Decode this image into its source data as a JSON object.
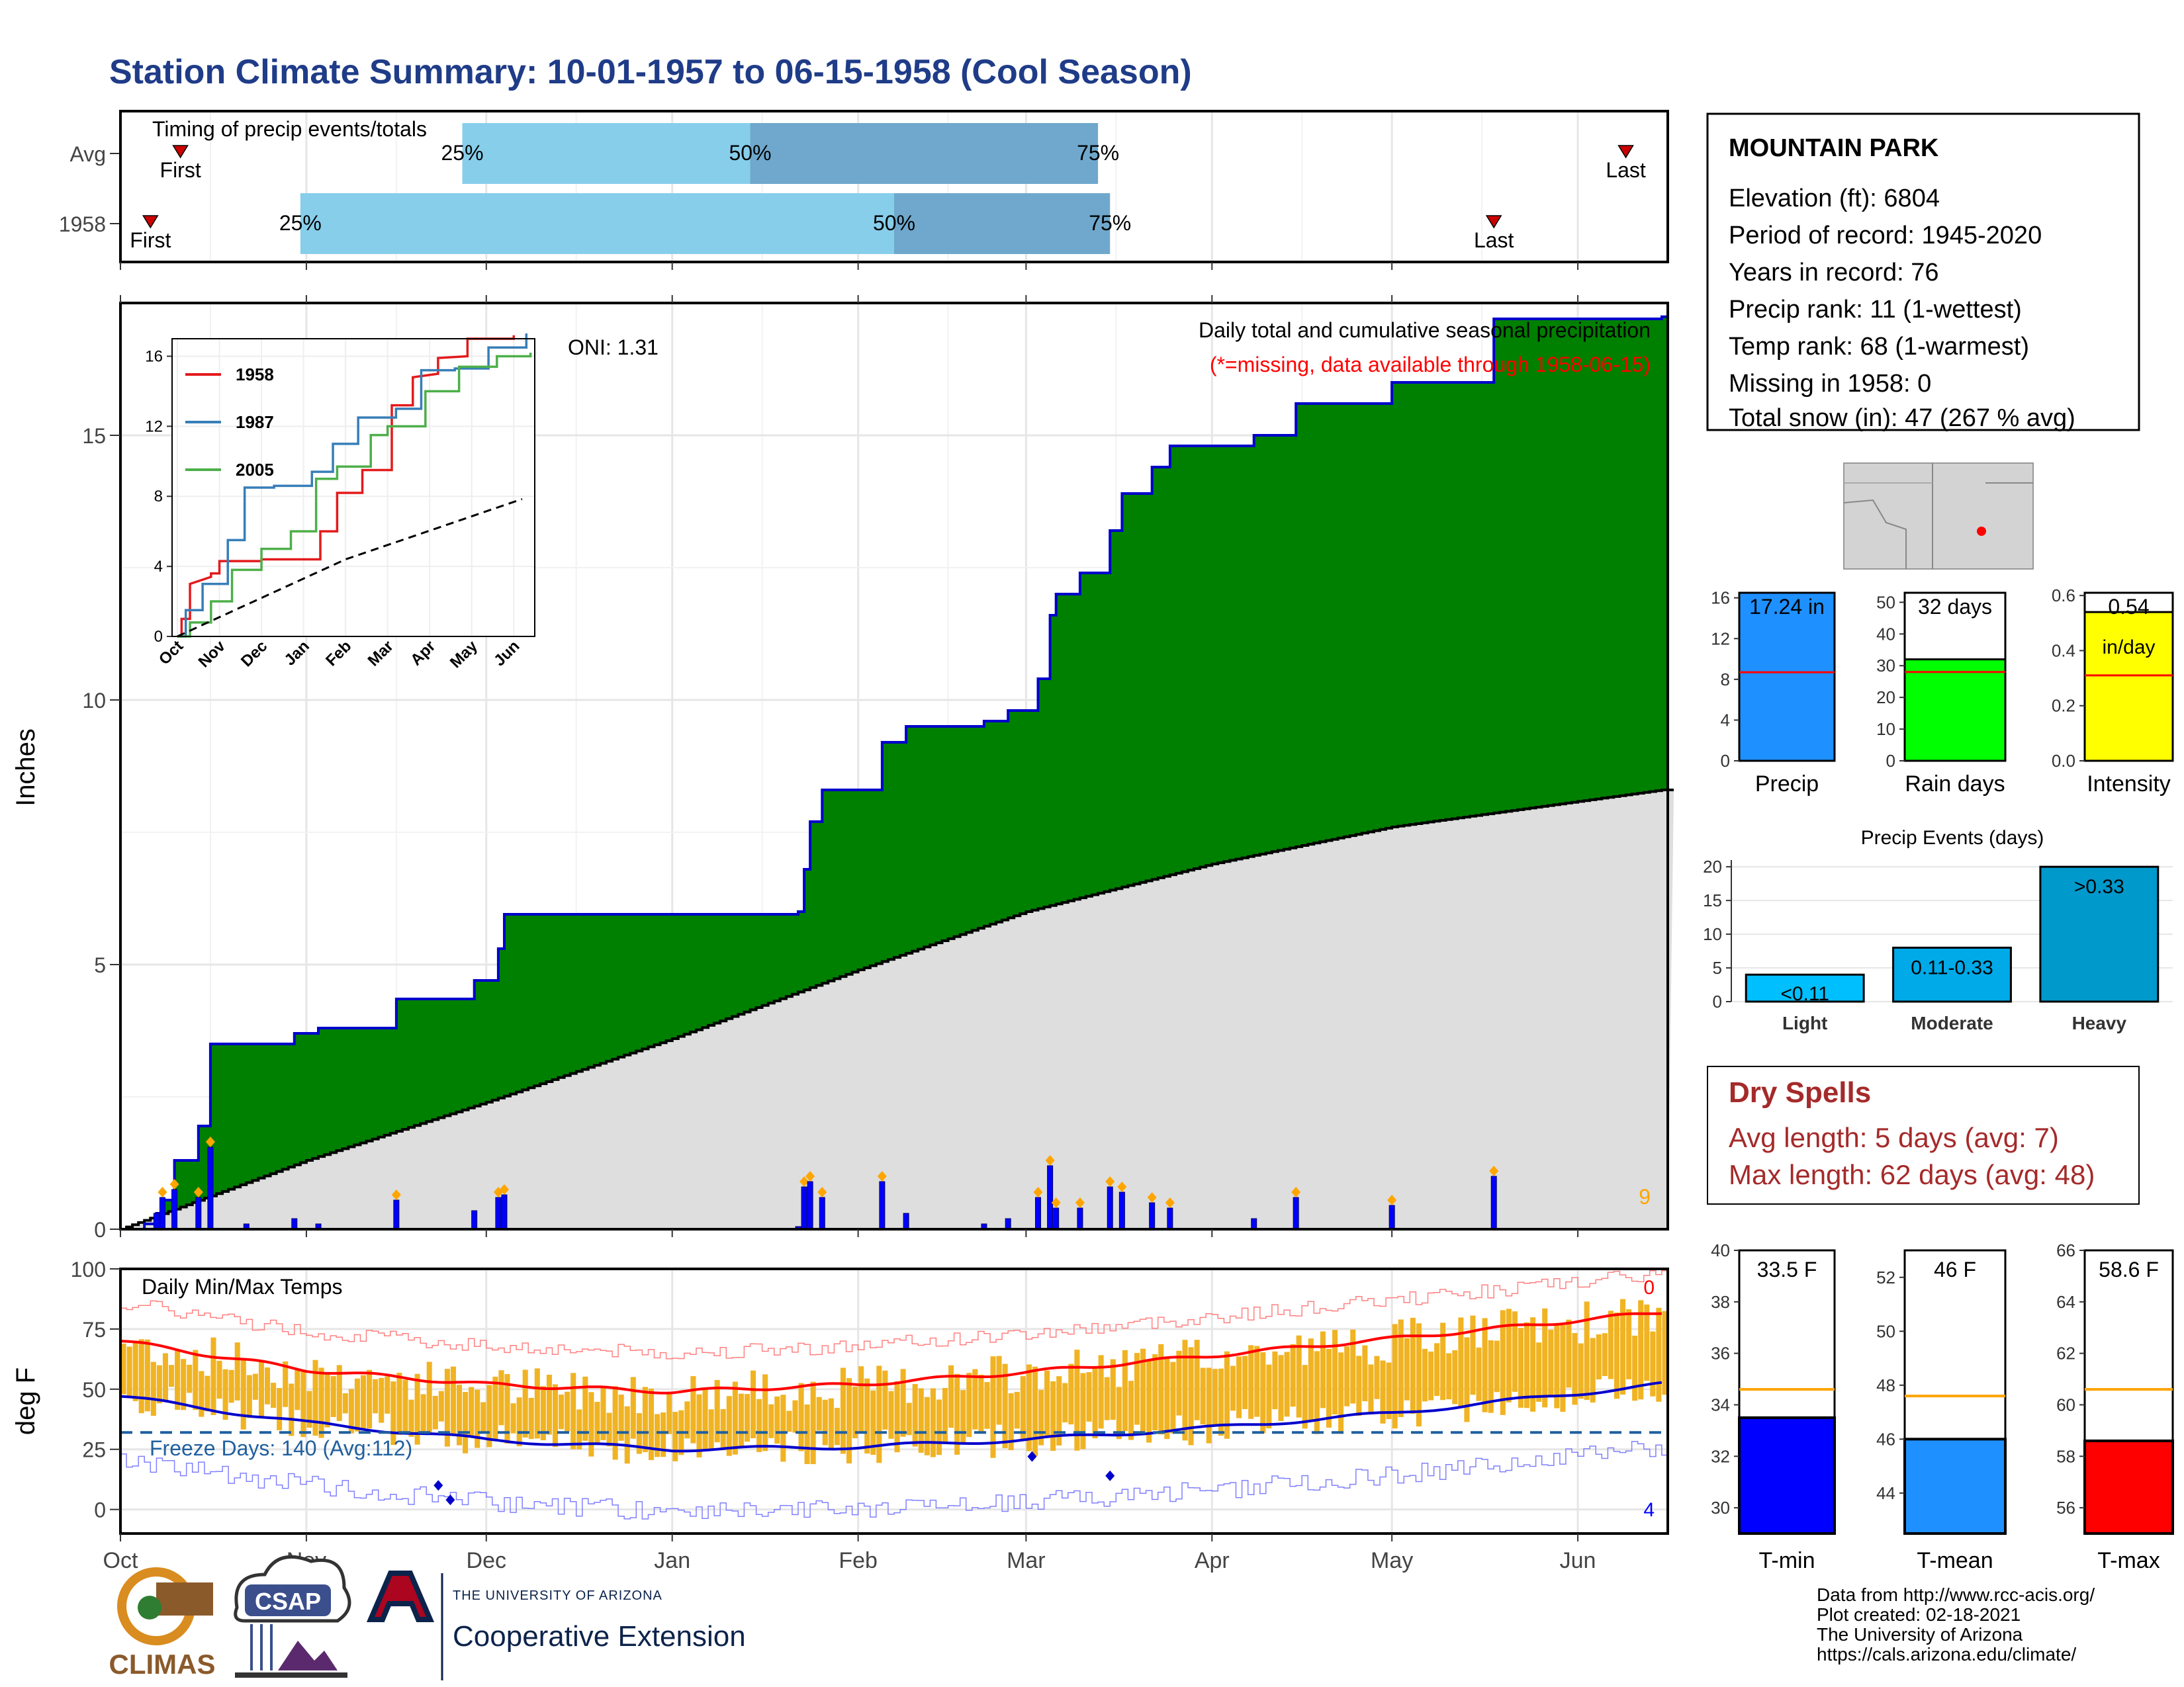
{
  "title": "Station Climate Summary: 10-01-1957 to 06-15-1958 (Cool Season)",
  "colors": {
    "title": "#1f3c88",
    "cum_fill": "#008000",
    "cum_line": "#0000cc",
    "avg_fill": "#dedede",
    "daily_bar": "#0000ff",
    "temp_bar": "#f0b323",
    "tmax_line": "#ff0000",
    "tmin_line": "#0000cc",
    "bar_light": "#87ceeb",
    "bar_dark": "#6fa8cc",
    "freeze": "#1f5f9f",
    "dry_text": "#a52a2a"
  },
  "timing": {
    "title": "Timing of precip events/totals",
    "rows": [
      {
        "label": "Avg",
        "first": "10-11",
        "p25": "11-27",
        "p50": "01-14",
        "p75": "03-13",
        "last": "06-09",
        "first_label": "First",
        "last_label": "Last",
        "p25_label": "25%",
        "p50_label": "50%",
        "p75_label": "75%"
      },
      {
        "label": "1958",
        "first": "10-06",
        "p25": "10-31",
        "p50": "02-07",
        "p75": "03-15",
        "last": "05-18",
        "first_label": "First",
        "last_label": "Last",
        "p25_label": "25%",
        "p50_label": "50%",
        "p75_label": "75%"
      }
    ]
  },
  "precip_panel": {
    "ylabel": "Inches",
    "yticks": [
      0,
      5,
      10,
      15
    ],
    "ylim": [
      0,
      17.5
    ],
    "oni": "ONI: 1.31",
    "caption": "Daily total and cumulative seasonal precipitation",
    "missing_note": "(*=missing, data available through 1958-06-15)",
    "corner_count": "9"
  },
  "inset": {
    "yticks": [
      0,
      4,
      8,
      12,
      16
    ],
    "xticks": [
      "Oct",
      "Nov",
      "Dec",
      "Jan",
      "Feb",
      "Mar",
      "Apr",
      "May",
      "Jun"
    ],
    "legend": [
      "1958",
      "1987",
      "2005"
    ]
  },
  "temp_panel": {
    "ylabel": "deg F",
    "title": "Daily Min/Max Temps",
    "yticks": [
      0,
      25,
      50,
      75,
      100
    ],
    "freeze": "Freeze Days: 140 (Avg:112)",
    "top_count": "0",
    "bottom_count": "4"
  },
  "months": [
    "Oct",
    "Nov",
    "Dec",
    "Jan",
    "Feb",
    "Mar",
    "Apr",
    "May",
    "Jun"
  ],
  "station": {
    "name": "MOUNTAIN PARK",
    "lines": [
      "Elevation (ft): 6804",
      "Period of record: 1945-2020",
      "Years in record: 76",
      "Precip rank: 11 (1-wettest)",
      "Temp rank: 68 (1-warmest)",
      "Missing in 1958: 0",
      "Total snow (in): 47 (267 % avg)"
    ]
  },
  "mini_bars": [
    {
      "label": "Precip",
      "value": 17.24,
      "avg": 8.7,
      "max": 16.5,
      "text": "17.24 in",
      "ticks": [
        0,
        4,
        8,
        12,
        16
      ],
      "color": "#1e90ff"
    },
    {
      "label": "Rain days",
      "value": 32,
      "avg": 28,
      "max": 53,
      "text": "32 days",
      "ticks": [
        0,
        10,
        20,
        30,
        40,
        50
      ],
      "color": "#00ff00"
    },
    {
      "label": "Intensity",
      "value": 0.54,
      "avg": 0.31,
      "max": 0.61,
      "text": "0.54",
      "text2": "in/day",
      "ticks": [
        "0.0",
        "0.2",
        "0.4",
        "0.6"
      ],
      "color": "#ffff00"
    }
  ],
  "events": {
    "title": "Precip Events (days)",
    "categories": [
      "Light",
      "Moderate",
      "Heavy"
    ],
    "values": [
      4,
      8,
      20
    ],
    "labels": [
      "<0.11",
      "0.11-0.33",
      ">0.33"
    ],
    "yticks": [
      0,
      5,
      10,
      15,
      20
    ]
  },
  "dry_spells": {
    "title": "Dry Spells",
    "avg": "Avg length: 5 days (avg: 7)",
    "max": "Max length: 62 days (avg: 48)"
  },
  "temp_bars": [
    {
      "label": "T-min",
      "value": 33.5,
      "avg": 34.6,
      "text": "33.5 F",
      "min": 29,
      "max": 40,
      "ticks": [
        30,
        32,
        34,
        36,
        38,
        40
      ],
      "color": "#0000ff"
    },
    {
      "label": "T-mean",
      "value": 46,
      "avg": 47.6,
      "text": "46 F",
      "min": 42.5,
      "max": 53,
      "ticks": [
        44,
        46,
        48,
        50,
        52
      ],
      "color": "#1e90ff"
    },
    {
      "label": "T-max",
      "value": 58.6,
      "avg": 60.6,
      "text": "58.6 F",
      "min": 55,
      "max": 66,
      "ticks": [
        56,
        58,
        60,
        62,
        64,
        66
      ],
      "color": "#ff0000"
    }
  ],
  "footer": {
    "lines": [
      "Data from http://www.rcc-acis.org/",
      "Plot created: 02-18-2021",
      "The University of Arizona",
      "https://cals.arizona.edu/climate/"
    ],
    "climas": "CLIMAS",
    "csap": "CSAP",
    "ua_top": "THE UNIVERSITY OF ARIZONA",
    "ua_bottom": "Cooperative Extension"
  },
  "chart_data": [
    {
      "type": "area",
      "title": "Daily total and cumulative seasonal precipitation",
      "ylabel": "Inches",
      "ylim": [
        0,
        17.5
      ],
      "x_start": "1957-10-01",
      "x_end": "1958-06-15",
      "cumulative_1958_steps": [
        [
          "1957-10-01",
          0
        ],
        [
          "1957-10-05",
          0.1
        ],
        [
          "1957-10-07",
          0.3
        ],
        [
          "1957-10-08",
          0.55
        ],
        [
          "1957-10-10",
          1.3
        ],
        [
          "1957-10-14",
          1.95
        ],
        [
          "1957-10-16",
          3.5
        ],
        [
          "1957-10-30",
          3.7
        ],
        [
          "1957-11-03",
          3.8
        ],
        [
          "1957-11-16",
          4.35
        ],
        [
          "1957-12-01",
          4.35
        ],
        [
          "1957-11-16",
          4.35
        ],
        [
          "1957-11-29",
          4.7
        ],
        [
          "1957-12-03",
          5.3
        ],
        [
          "1957-12-04",
          5.95
        ],
        [
          "1958-01-09",
          5.95
        ],
        [
          "1958-01-22",
          6.0
        ],
        [
          "1958-01-23",
          6.8
        ],
        [
          "1958-01-24",
          7.7
        ],
        [
          "1958-01-26",
          8.3
        ],
        [
          "1958-02-05",
          9.2
        ],
        [
          "1958-02-09",
          9.5
        ],
        [
          "1958-02-22",
          9.6
        ],
        [
          "1958-02-26",
          9.8
        ],
        [
          "1958-03-03",
          10.4
        ],
        [
          "1958-03-05",
          11.6
        ],
        [
          "1958-03-06",
          12.0
        ],
        [
          "1958-03-10",
          12.4
        ],
        [
          "1958-03-15",
          13.2
        ],
        [
          "1958-03-17",
          13.9
        ],
        [
          "1958-03-22",
          14.4
        ],
        [
          "1958-03-25",
          14.8
        ],
        [
          "1958-04-08",
          15.0
        ],
        [
          "1958-04-15",
          15.6
        ],
        [
          "1958-05-01",
          16.0
        ],
        [
          "1958-05-18",
          17.2
        ],
        [
          "1958-06-15",
          17.24
        ]
      ],
      "average_cumulative": [
        [
          "1957-10-01",
          0
        ],
        [
          "1957-11-01",
          1.3
        ],
        [
          "1957-12-01",
          2.4
        ],
        [
          "1958-01-01",
          3.6
        ],
        [
          "1958-02-01",
          4.9
        ],
        [
          "1958-03-01",
          6.0
        ],
        [
          "1958-04-01",
          6.9
        ],
        [
          "1958-05-01",
          7.6
        ],
        [
          "1958-06-15",
          8.3
        ]
      ],
      "daily_precip": [
        [
          "1957-10-07",
          0.3
        ],
        [
          "1957-10-08",
          0.6
        ],
        [
          "1957-10-10",
          0.75
        ],
        [
          "1957-10-14",
          0.6
        ],
        [
          "1957-10-16",
          1.55
        ],
        [
          "1957-10-22",
          0.1
        ],
        [
          "1957-10-30",
          0.2
        ],
        [
          "1957-11-03",
          0.1
        ],
        [
          "1957-11-16",
          0.55
        ],
        [
          "1957-11-29",
          0.35
        ],
        [
          "1957-12-03",
          0.6
        ],
        [
          "1957-12-04",
          0.65
        ],
        [
          "1958-01-22",
          0.05
        ],
        [
          "1958-01-23",
          0.8
        ],
        [
          "1958-01-24",
          0.9
        ],
        [
          "1958-01-26",
          0.6
        ],
        [
          "1958-02-05",
          0.9
        ],
        [
          "1958-02-09",
          0.3
        ],
        [
          "1958-02-22",
          0.1
        ],
        [
          "1958-02-26",
          0.2
        ],
        [
          "1958-03-03",
          0.6
        ],
        [
          "1958-03-05",
          1.2
        ],
        [
          "1958-03-06",
          0.4
        ],
        [
          "1958-03-10",
          0.4
        ],
        [
          "1958-03-15",
          0.8
        ],
        [
          "1958-03-17",
          0.7
        ],
        [
          "1958-03-22",
          0.5
        ],
        [
          "1958-03-25",
          0.4
        ],
        [
          "1958-04-08",
          0.2
        ],
        [
          "1958-04-15",
          0.6
        ],
        [
          "1958-05-01",
          0.45
        ],
        [
          "1958-05-18",
          1.0
        ]
      ]
    },
    {
      "type": "line",
      "title": "Daily Min/Max Temps",
      "ylabel": "deg F",
      "ylim": [
        -10,
        100
      ],
      "freeze_threshold": 32,
      "avg_tmax": [
        [
          "1957-10-01",
          70
        ],
        [
          "1957-11-01",
          58
        ],
        [
          "1957-12-01",
          52
        ],
        [
          "1958-01-01",
          49
        ],
        [
          "1958-02-01",
          52
        ],
        [
          "1958-03-01",
          57
        ],
        [
          "1958-04-01",
          64
        ],
        [
          "1958-05-01",
          71
        ],
        [
          "1958-06-15",
          82
        ]
      ],
      "avg_tmin": [
        [
          "1957-10-01",
          47
        ],
        [
          "1957-11-01",
          36
        ],
        [
          "1957-12-01",
          29
        ],
        [
          "1958-01-01",
          25
        ],
        [
          "1958-02-01",
          26
        ],
        [
          "1958-03-01",
          29
        ],
        [
          "1958-04-01",
          34
        ],
        [
          "1958-05-01",
          40
        ],
        [
          "1958-06-15",
          52
        ]
      ]
    },
    {
      "type": "bar",
      "title": "Precip Events (days)",
      "categories": [
        "Light",
        "Moderate",
        "Heavy"
      ],
      "values": [
        4,
        8,
        20
      ],
      "ylim": [
        0,
        21
      ]
    }
  ]
}
